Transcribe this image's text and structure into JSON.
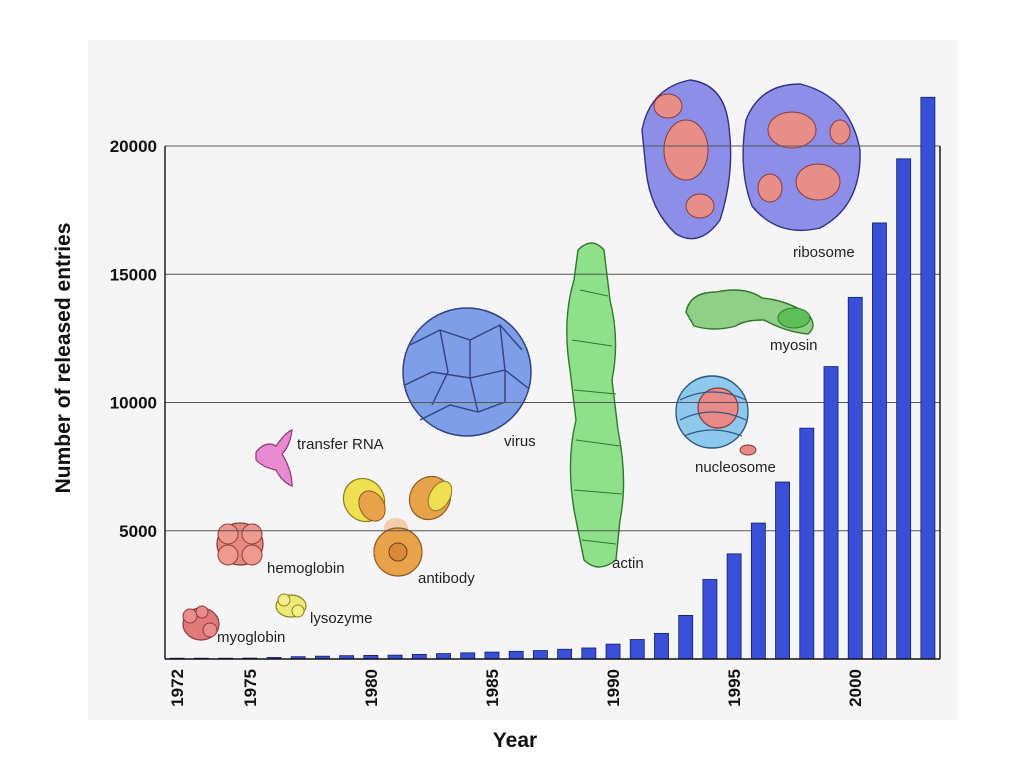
{
  "chart_data": {
    "type": "bar",
    "x": [
      1972,
      1973,
      1974,
      1975,
      1976,
      1977,
      1978,
      1979,
      1980,
      1981,
      1982,
      1983,
      1984,
      1985,
      1986,
      1987,
      1988,
      1989,
      1990,
      1991,
      1992,
      1993,
      1994,
      1995,
      1996,
      1997,
      1998,
      1999,
      2000,
      2001,
      2002,
      2003
    ],
    "values": [
      13,
      20,
      25,
      36,
      60,
      90,
      110,
      130,
      140,
      150,
      180,
      210,
      240,
      270,
      300,
      330,
      380,
      430,
      580,
      760,
      1000,
      1700,
      3100,
      4100,
      5300,
      6900,
      9000,
      11400,
      14100,
      17000,
      19500,
      21900
    ],
    "xticks": [
      "1972",
      "1975",
      "1980",
      "1985",
      "1990",
      "1995",
      "2000"
    ],
    "yticks": [
      "5000",
      "10000",
      "15000",
      "20000"
    ],
    "xlabel": "Year",
    "ylabel": "Number of released entries",
    "ylim": [
      0,
      20000
    ],
    "grid": true,
    "bar_color": "#3a4fd8"
  },
  "annotations": {
    "myoglobin": "myoglobin",
    "lysozyme": "lysozyme",
    "hemoglobin": "hemoglobin",
    "transfer_rna": "transfer RNA",
    "antibody": "antibody",
    "virus": "virus",
    "actin": "actin",
    "myosin": "myosin",
    "nucleosome": "nucleosome",
    "ribosome": "ribosome"
  },
  "colors": {
    "myoglobin": "#e07a7a",
    "lysozyme": "#eeea7a",
    "hemoglobin": "#e88a80",
    "transfer_rna": "#e88ad0",
    "antibody": "#e8a24a",
    "antibody_light": "#eee050",
    "virus": "#7f9ee8",
    "actin": "#8ee08a",
    "myosin": "#7fcf7a",
    "nucleosome_dna": "#8ec8ee",
    "nucleosome_core": "#e88a88",
    "ribosome_a": "#8c8ee8",
    "ribosome_b": "#e88e88"
  }
}
